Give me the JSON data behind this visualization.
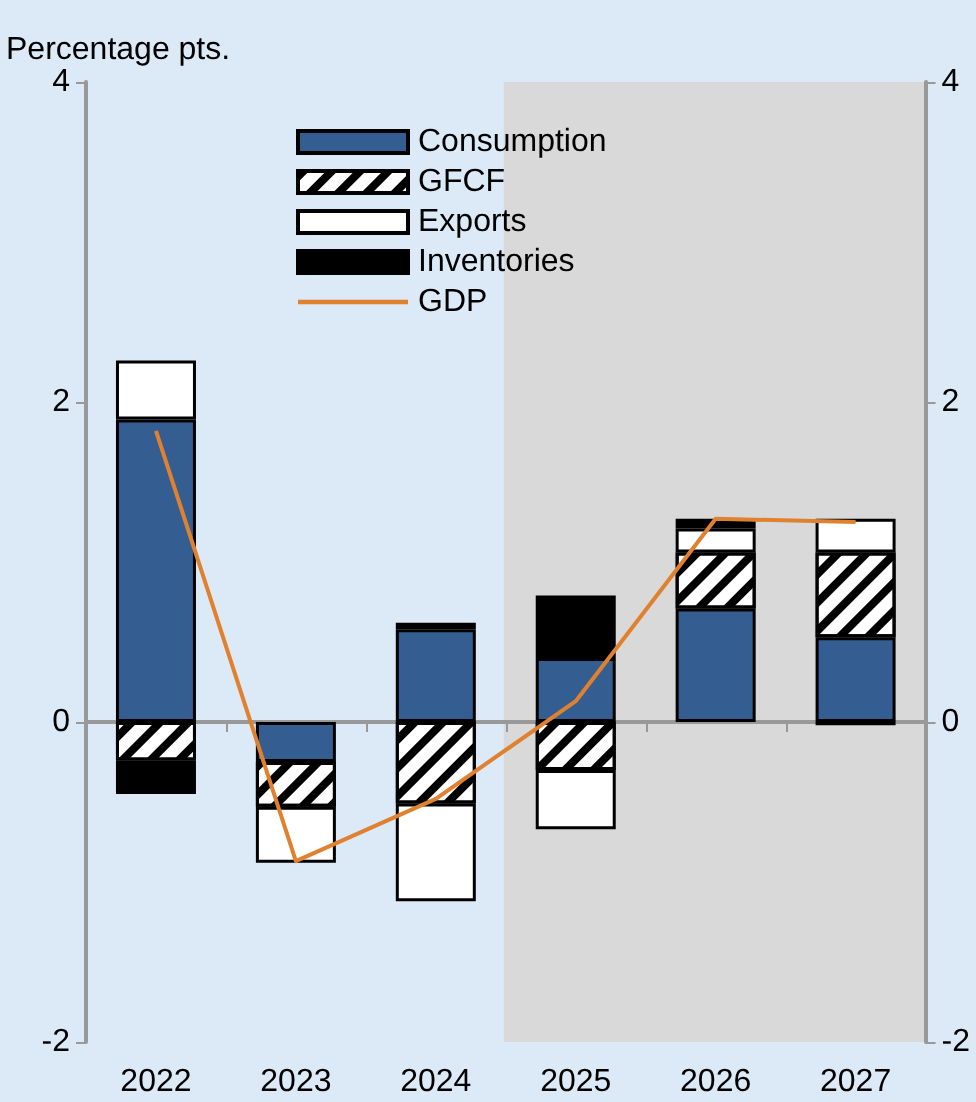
{
  "chart_data": {
    "type": "bar",
    "stacked": true,
    "ylabel": "Percentage pts.",
    "categories": [
      "2022",
      "2023",
      "2024",
      "2025",
      "2026",
      "2027"
    ],
    "series": [
      {
        "name": "Consumption",
        "color": "#345e91",
        "values": [
          1.89,
          -0.25,
          0.58,
          0.4,
          0.71,
          0.53
        ]
      },
      {
        "name": "GFCF",
        "color": "#ffffff",
        "values": [
          -0.24,
          -0.28,
          -0.51,
          -0.3,
          0.35,
          0.53
        ]
      },
      {
        "name": "Exports",
        "color": "#ffffff",
        "values": [
          0.37,
          -0.35,
          -0.61,
          -0.37,
          0.15,
          0.21
        ]
      },
      {
        "name": "Inventories",
        "color": "#000000",
        "values": [
          -0.21,
          null,
          0.04,
          0.39,
          0.06,
          -0.02
        ]
      },
      {
        "name": "GDP",
        "type": "line",
        "color": "#e0812f",
        "values": [
          1.82,
          -0.87,
          -0.48,
          0.13,
          1.27,
          1.25
        ]
      }
    ],
    "ylim": [
      -2,
      4
    ],
    "yticks": [
      -2,
      0,
      2,
      4
    ],
    "y2lim": [
      -2,
      4
    ],
    "y2ticks": [
      -2,
      0,
      2,
      4
    ],
    "bands": [
      {
        "axis": "x",
        "from": "2025",
        "to": "2027",
        "color": "#d9d9d9"
      }
    ],
    "legend": "top",
    "marker": "none"
  }
}
